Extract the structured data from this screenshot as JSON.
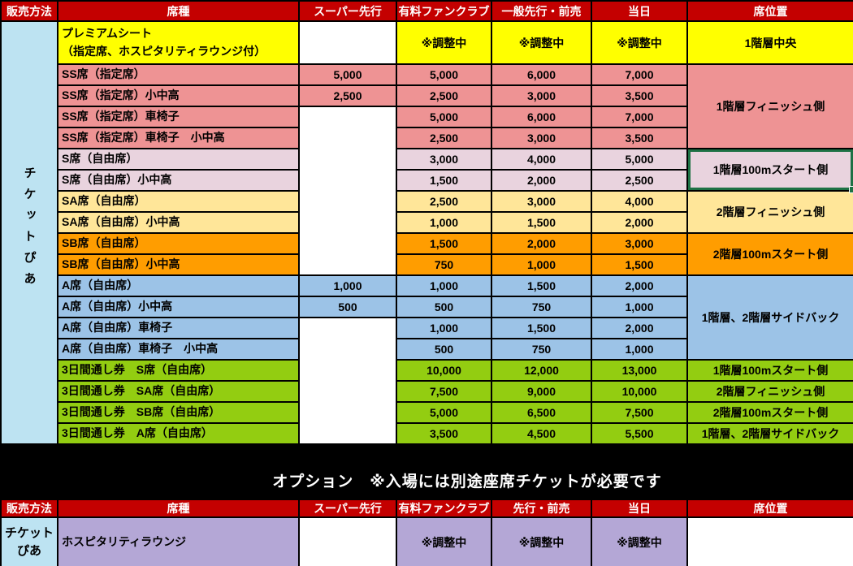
{
  "colors": {
    "header_red": "#C40000",
    "yellow": "#FFFF00",
    "salmon": "#EE9394",
    "pink": "#E9D3DE",
    "cream": "#FFE699",
    "orange": "#FF9D00",
    "blue": "#9CC3E7",
    "green": "#93CD11",
    "vendor_blue": "#BDE3F2",
    "purple": "#B4A7D6",
    "white": "#FFFFFF",
    "selection_green": "#1E7144",
    "background_black": "#000000"
  },
  "option_note": "オプション　※入場には別途座席チケットが必要です",
  "top_table": {
    "headers": [
      "販売方法",
      "席種",
      "スーパー先行",
      "有料ファンクラブ",
      "一般先行・前売",
      "当日",
      "席位置"
    ],
    "vendor": "チケットぴあ",
    "rows": [
      {
        "seat": "プレミアムシート\n（指定席、ホスピタリティラウンジ付）",
        "color": "yellow",
        "super": {
          "text": "",
          "white": true,
          "span": 1
        },
        "fc": "※調整中",
        "general": "※調整中",
        "day": "※調整中",
        "loc": {
          "text": "1階層中央",
          "span": 1
        }
      },
      {
        "seat": "SS席（指定席）",
        "color": "salmon",
        "super": {
          "text": "5,000",
          "white": false,
          "span": 1
        },
        "fc": "5,000",
        "general": "6,000",
        "day": "7,000",
        "loc": {
          "text": "1階層フィニッシュ側",
          "span": 4
        }
      },
      {
        "seat": "SS席（指定席）小中高",
        "color": "salmon",
        "super": {
          "text": "2,500",
          "white": false,
          "span": 1
        },
        "fc": "2,500",
        "general": "3,000",
        "day": "3,500",
        "loc": null
      },
      {
        "seat": "SS席（指定席）車椅子",
        "color": "salmon",
        "super": {
          "text": "",
          "white": true,
          "span": 8
        },
        "fc": "5,000",
        "general": "6,000",
        "day": "7,000",
        "loc": null
      },
      {
        "seat": "SS席（指定席）車椅子　小中高",
        "color": "salmon",
        "super": null,
        "fc": "2,500",
        "general": "3,000",
        "day": "3,500",
        "loc": null
      },
      {
        "seat": "S席（自由席）",
        "color": "pink",
        "super": null,
        "fc": "3,000",
        "general": "4,000",
        "day": "5,000",
        "loc": {
          "text": "1階層100mスタート側",
          "span": 2,
          "selected": true
        }
      },
      {
        "seat": "S席（自由席）小中高",
        "color": "pink",
        "super": null,
        "fc": "1,500",
        "general": "2,000",
        "day": "2,500",
        "loc": null
      },
      {
        "seat": "SA席（自由席）",
        "color": "cream",
        "super": null,
        "fc": "2,500",
        "general": "3,000",
        "day": "4,000",
        "loc": {
          "text": "2階層フィニッシュ側",
          "span": 2
        }
      },
      {
        "seat": "SA席（自由席）小中高",
        "color": "cream",
        "super": null,
        "fc": "1,000",
        "general": "1,500",
        "day": "2,000",
        "loc": null
      },
      {
        "seat": "SB席（自由席）",
        "color": "orange",
        "super": null,
        "fc": "1,500",
        "general": "2,000",
        "day": "3,000",
        "loc": {
          "text": "2階層100mスタート側",
          "span": 2
        }
      },
      {
        "seat": "SB席（自由席）小中高",
        "color": "orange",
        "super": null,
        "fc": "750",
        "general": "1,000",
        "day": "1,500",
        "loc": null
      },
      {
        "seat": "A席（自由席）",
        "color": "blue",
        "super": {
          "text": "1,000",
          "white": false,
          "span": 1
        },
        "fc": "1,000",
        "general": "1,500",
        "day": "2,000",
        "loc": {
          "text": "1階層、2階層サイドバック",
          "span": 4
        }
      },
      {
        "seat": "A席（自由席）小中高",
        "color": "blue",
        "super": {
          "text": "500",
          "white": false,
          "span": 1
        },
        "fc": "500",
        "general": "750",
        "day": "1,000",
        "loc": null
      },
      {
        "seat": "A席（自由席）車椅子",
        "color": "blue",
        "super": {
          "text": "",
          "white": true,
          "span": 6
        },
        "fc": "1,000",
        "general": "1,500",
        "day": "2,000",
        "loc": null
      },
      {
        "seat": "A席（自由席）車椅子　小中高",
        "color": "blue",
        "super": null,
        "fc": "500",
        "general": "750",
        "day": "1,000",
        "loc": null
      },
      {
        "seat": "3日間通し券　S席（自由席）",
        "color": "green",
        "super": null,
        "fc": "10,000",
        "general": "12,000",
        "day": "13,000",
        "loc": {
          "text": "1階層100mスタート側",
          "span": 1
        }
      },
      {
        "seat": "3日間通し券　SA席（自由席）",
        "color": "green",
        "super": null,
        "fc": "7,500",
        "general": "9,000",
        "day": "10,000",
        "loc": {
          "text": "2階層フィニッシュ側",
          "span": 1
        }
      },
      {
        "seat": "3日間通し券　SB席（自由席）",
        "color": "green",
        "super": null,
        "fc": "5,000",
        "general": "6,500",
        "day": "7,500",
        "loc": {
          "text": "2階層100mスタート側",
          "span": 1
        }
      },
      {
        "seat": "3日間通し券　A席（自由席）",
        "color": "green",
        "super": null,
        "fc": "3,500",
        "general": "4,500",
        "day": "5,500",
        "loc": {
          "text": "1階層、2階層サイドバック",
          "span": 1
        }
      }
    ]
  },
  "bottom_table": {
    "headers": [
      "販売方法",
      "席種",
      "スーパー先行",
      "有料ファンクラブ",
      "先行・前売",
      "当日",
      "席位置"
    ],
    "vendor": "チケットぴあ",
    "rows": [
      {
        "seat": "ホスピタリティラウンジ",
        "color": "purple",
        "super": {
          "text": "",
          "white": true,
          "span": 1
        },
        "fc": "※調整中",
        "general": "※調整中",
        "day": "※調整中",
        "loc": {
          "text": "",
          "white": true,
          "span": 1
        }
      }
    ]
  }
}
